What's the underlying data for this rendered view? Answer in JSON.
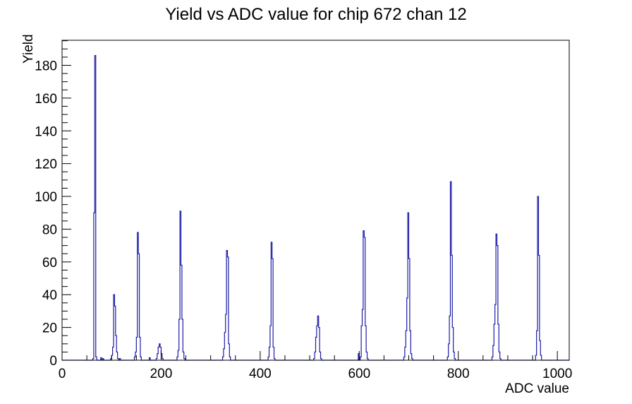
{
  "chart_data": {
    "type": "bar",
    "style": "step-histogram",
    "title": "Yield vs ADC value for chip 672 chan 12",
    "xlabel": "ADC value",
    "ylabel": "Yield",
    "xlim": [
      0,
      1024
    ],
    "ylim": [
      0,
      195.3
    ],
    "grid": false,
    "legend": null,
    "line_color": "#1c1ca6",
    "frame_color": "#000000",
    "background_color": "#ffffff",
    "x_ticks": {
      "labels": [
        "0",
        "200",
        "400",
        "600",
        "800",
        "1000"
      ],
      "major_step": 200,
      "minor_step": 50
    },
    "y_ticks": {
      "labels": [
        "0",
        "20",
        "40",
        "60",
        "80",
        "100",
        "120",
        "140",
        "160",
        "180"
      ],
      "major_step": 20,
      "minor_step": 5
    },
    "bin_width": 2,
    "clusters": [
      {
        "start": 62,
        "heights": [
          1,
          90,
          186,
          2
        ]
      },
      {
        "start": 78,
        "heights": [
          1.5,
          0,
          1
        ]
      },
      {
        "start": 98,
        "heights": [
          1,
          3,
          8,
          40,
          33,
          15,
          5,
          1,
          0,
          1
        ]
      },
      {
        "start": 146,
        "heights": [
          2,
          5,
          14,
          78,
          65,
          14,
          2
        ]
      },
      {
        "start": 176,
        "heights": [
          1.5
        ]
      },
      {
        "start": 190,
        "heights": [
          1,
          4,
          8,
          10,
          8,
          4,
          1
        ]
      },
      {
        "start": 232,
        "heights": [
          2,
          6,
          25,
          91,
          58,
          25,
          5,
          1
        ]
      },
      {
        "start": 324,
        "heights": [
          2,
          7,
          17,
          28,
          67,
          63,
          10,
          2
        ]
      },
      {
        "start": 416,
        "heights": [
          2,
          8,
          21,
          72,
          62,
          8,
          1
        ]
      },
      {
        "start": 508,
        "heights": [
          1,
          5,
          14,
          21,
          27,
          20,
          5,
          1
        ]
      },
      {
        "start": 598,
        "heights": [
          4,
          0,
          2,
          21,
          31,
          79,
          75,
          21,
          5,
          1
        ]
      },
      {
        "start": 690,
        "heights": [
          2,
          8,
          18,
          38,
          90,
          62,
          18,
          4,
          1
        ]
      },
      {
        "start": 778,
        "heights": [
          2,
          10,
          27,
          109,
          64,
          20,
          5,
          1
        ]
      },
      {
        "start": 868,
        "heights": [
          2,
          9,
          22,
          34,
          77,
          70,
          22,
          5,
          1
        ]
      },
      {
        "start": 956,
        "heights": [
          3,
          18,
          100,
          64,
          12,
          3
        ]
      }
    ]
  }
}
